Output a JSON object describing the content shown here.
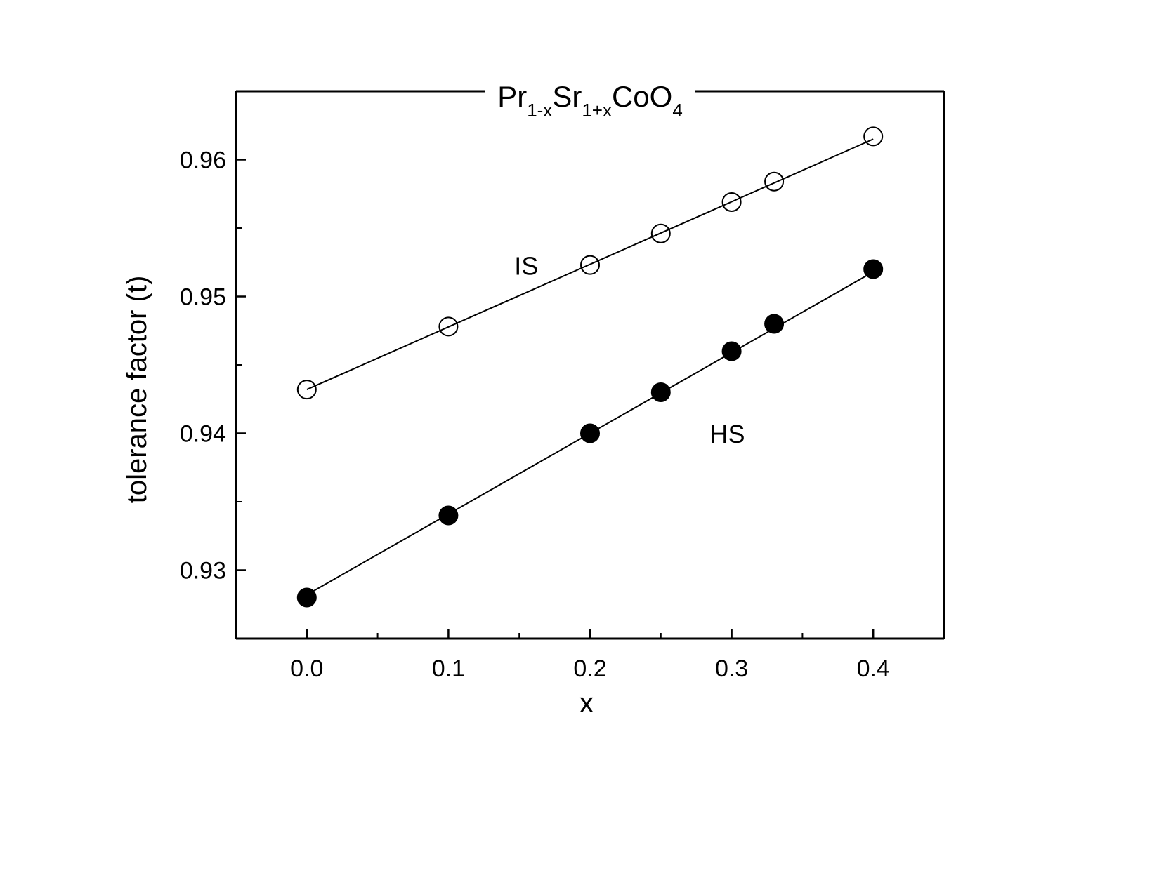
{
  "chart_data": {
    "type": "scatter",
    "title_parts": [
      {
        "text": "Pr",
        "sub": false
      },
      {
        "text": "1-x",
        "sub": true
      },
      {
        "text": "Sr",
        "sub": false
      },
      {
        "text": "1+x",
        "sub": true
      },
      {
        "text": "CoO",
        "sub": false
      },
      {
        "text": "4",
        "sub": true
      }
    ],
    "xlabel": "x",
    "ylabel": "tolerance factor (t)",
    "xlim": [
      -0.05,
      0.45
    ],
    "ylim": [
      0.925,
      0.965
    ],
    "xticks": [
      "0.0",
      "0.1",
      "0.2",
      "0.3",
      "0.4"
    ],
    "yticks": [
      "0.93",
      "0.94",
      "0.95",
      "0.96"
    ],
    "grid": false,
    "series": [
      {
        "name": "IS",
        "marker": "open-circle",
        "x": [
          0.0,
          0.1,
          0.2,
          0.25,
          0.3,
          0.33,
          0.4
        ],
        "y": [
          0.9432,
          0.9478,
          0.9523,
          0.9546,
          0.9569,
          0.9584,
          0.9617
        ],
        "fit": [
          [
            0.0,
            0.9432
          ],
          [
            0.4,
            0.9615
          ]
        ]
      },
      {
        "name": "HS",
        "marker": "filled-circle",
        "x": [
          0.0,
          0.1,
          0.2,
          0.25,
          0.3,
          0.33,
          0.4
        ],
        "y": [
          0.928,
          0.934,
          0.94,
          0.943,
          0.946,
          0.948,
          0.952
        ],
        "fit": [
          [
            0.0,
            0.9282
          ],
          [
            0.4,
            0.9518
          ]
        ]
      }
    ]
  }
}
